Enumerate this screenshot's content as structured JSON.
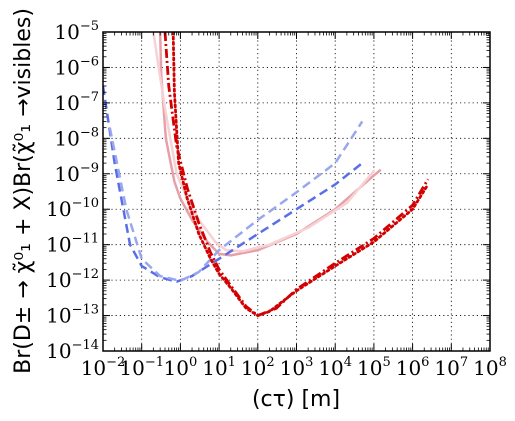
{
  "chart_data": {
    "type": "line",
    "xlabel": "(cτ) [m]",
    "ylabel": "Br(D± → χ̃⁰₁ + X)Br(χ̃⁰₁ →visibles)",
    "xscale": "log",
    "yscale": "log",
    "xlim": [
      0.01,
      100000000
    ],
    "ylim": [
      1e-14,
      1e-05
    ],
    "grid": true,
    "grid_style": "dotted",
    "x_ticks": [
      {
        "base": "10",
        "exp": "−2"
      },
      {
        "base": "10",
        "exp": "−1"
      },
      {
        "base": "10",
        "exp": "0"
      },
      {
        "base": "10",
        "exp": "1"
      },
      {
        "base": "10",
        "exp": "2"
      },
      {
        "base": "10",
        "exp": "3"
      },
      {
        "base": "10",
        "exp": "4"
      },
      {
        "base": "10",
        "exp": "5"
      },
      {
        "base": "10",
        "exp": "6"
      },
      {
        "base": "10",
        "exp": "7"
      },
      {
        "base": "10",
        "exp": "8"
      }
    ],
    "y_ticks": [
      {
        "base": "10",
        "exp": "−14"
      },
      {
        "base": "10",
        "exp": "−13"
      },
      {
        "base": "10",
        "exp": "−12"
      },
      {
        "base": "10",
        "exp": "−11"
      },
      {
        "base": "10",
        "exp": "−10"
      },
      {
        "base": "10",
        "exp": "−9"
      },
      {
        "base": "10",
        "exp": "−8"
      },
      {
        "base": "10",
        "exp": "−7"
      },
      {
        "base": "10",
        "exp": "−6"
      },
      {
        "base": "10",
        "exp": "−5"
      }
    ],
    "series": [
      {
        "color": "#e8a0a8",
        "dash": "solid",
        "width": 2.5,
        "points": [
          [
            0.3,
            1e-05
          ],
          [
            0.32,
            6e-07
          ],
          [
            0.42,
            1e-08
          ],
          [
            0.7,
            6e-10
          ],
          [
            1.0,
            2e-10
          ],
          [
            2.0,
            5e-11
          ],
          [
            5.0,
            1.2e-11
          ],
          [
            10,
            5.5e-12
          ],
          [
            20,
            5e-12
          ],
          [
            100,
            7e-12
          ],
          [
            1000,
            2e-11
          ],
          [
            10000,
            1e-10
          ],
          [
            100000,
            9e-10
          ],
          [
            150000,
            1.3e-09
          ]
        ]
      },
      {
        "color": "#f6d2d6",
        "dash": "solid",
        "width": 2.5,
        "points": [
          [
            0.2,
            1e-05
          ],
          [
            0.25,
            2e-06
          ],
          [
            0.4,
            7e-08
          ],
          [
            0.8,
            1e-09
          ],
          [
            1.5,
            2e-10
          ],
          [
            3.0,
            5e-11
          ],
          [
            8.0,
            1.2e-11
          ],
          [
            15,
            7e-12
          ],
          [
            40,
            6.5e-12
          ],
          [
            200,
            1e-11
          ],
          [
            2000,
            3e-11
          ],
          [
            20000,
            1.5e-10
          ],
          [
            100000,
            1.2e-09
          ]
        ]
      },
      {
        "color": "#5a6ee8",
        "dash": "dashed",
        "width": 2.5,
        "points": [
          [
            0.01,
            3e-07
          ],
          [
            0.02,
            2e-09
          ],
          [
            0.05,
            1e-11
          ],
          [
            0.1,
            2.5e-12
          ],
          [
            0.3,
            1.2e-12
          ],
          [
            0.8,
            9e-13
          ],
          [
            2.0,
            1.3e-12
          ],
          [
            10,
            4e-12
          ],
          [
            100,
            2e-11
          ],
          [
            1000,
            1e-10
          ],
          [
            10000,
            5e-10
          ],
          [
            50000,
            2e-09
          ]
        ]
      },
      {
        "color": "#9aa6ee",
        "dash": "dashed",
        "width": 2.5,
        "points": [
          [
            0.015,
            2e-08
          ],
          [
            0.04,
            1e-10
          ],
          [
            0.1,
            4e-12
          ],
          [
            0.3,
            1.3e-12
          ],
          [
            1.0,
            9.5e-13
          ],
          [
            3.0,
            1.7e-12
          ],
          [
            10,
            7e-12
          ],
          [
            100,
            5e-11
          ],
          [
            1000,
            3e-10
          ],
          [
            10000,
            2e-09
          ],
          [
            50000,
            3e-08
          ]
        ]
      },
      {
        "color": "#d20000",
        "dash": "dotted",
        "width": 2.8,
        "points": [
          [
            0.65,
            1e-05
          ],
          [
            0.7,
            2e-07
          ],
          [
            0.9,
            2e-09
          ],
          [
            1.5,
            2e-10
          ],
          [
            3.0,
            2e-11
          ],
          [
            6.0,
            4e-12
          ],
          [
            10,
            1.5e-12
          ],
          [
            20,
            6e-13
          ],
          [
            50,
            1.6e-13
          ],
          [
            100,
            1e-13
          ],
          [
            200,
            1.3e-13
          ],
          [
            1000,
            5e-13
          ],
          [
            10000,
            2.5e-12
          ],
          [
            100000,
            1.2e-11
          ],
          [
            1000000,
            1e-10
          ],
          [
            2500000,
            5e-10
          ]
        ]
      },
      {
        "color": "#d20000",
        "dash": "dashdot",
        "width": 2.8,
        "points": [
          [
            0.4,
            1e-05
          ],
          [
            0.5,
            3e-07
          ],
          [
            0.8,
            6e-09
          ],
          [
            1.5,
            4e-10
          ],
          [
            3.0,
            4e-11
          ],
          [
            6.0,
            6e-12
          ],
          [
            10,
            2e-12
          ],
          [
            20,
            7e-13
          ],
          [
            50,
            1.8e-13
          ],
          [
            100,
            1e-13
          ],
          [
            300,
            1.6e-13
          ],
          [
            1000,
            5.5e-13
          ],
          [
            10000,
            3e-12
          ],
          [
            100000,
            1.5e-11
          ],
          [
            1000000,
            1.3e-10
          ],
          [
            2500000,
            7e-10
          ]
        ]
      }
    ]
  }
}
